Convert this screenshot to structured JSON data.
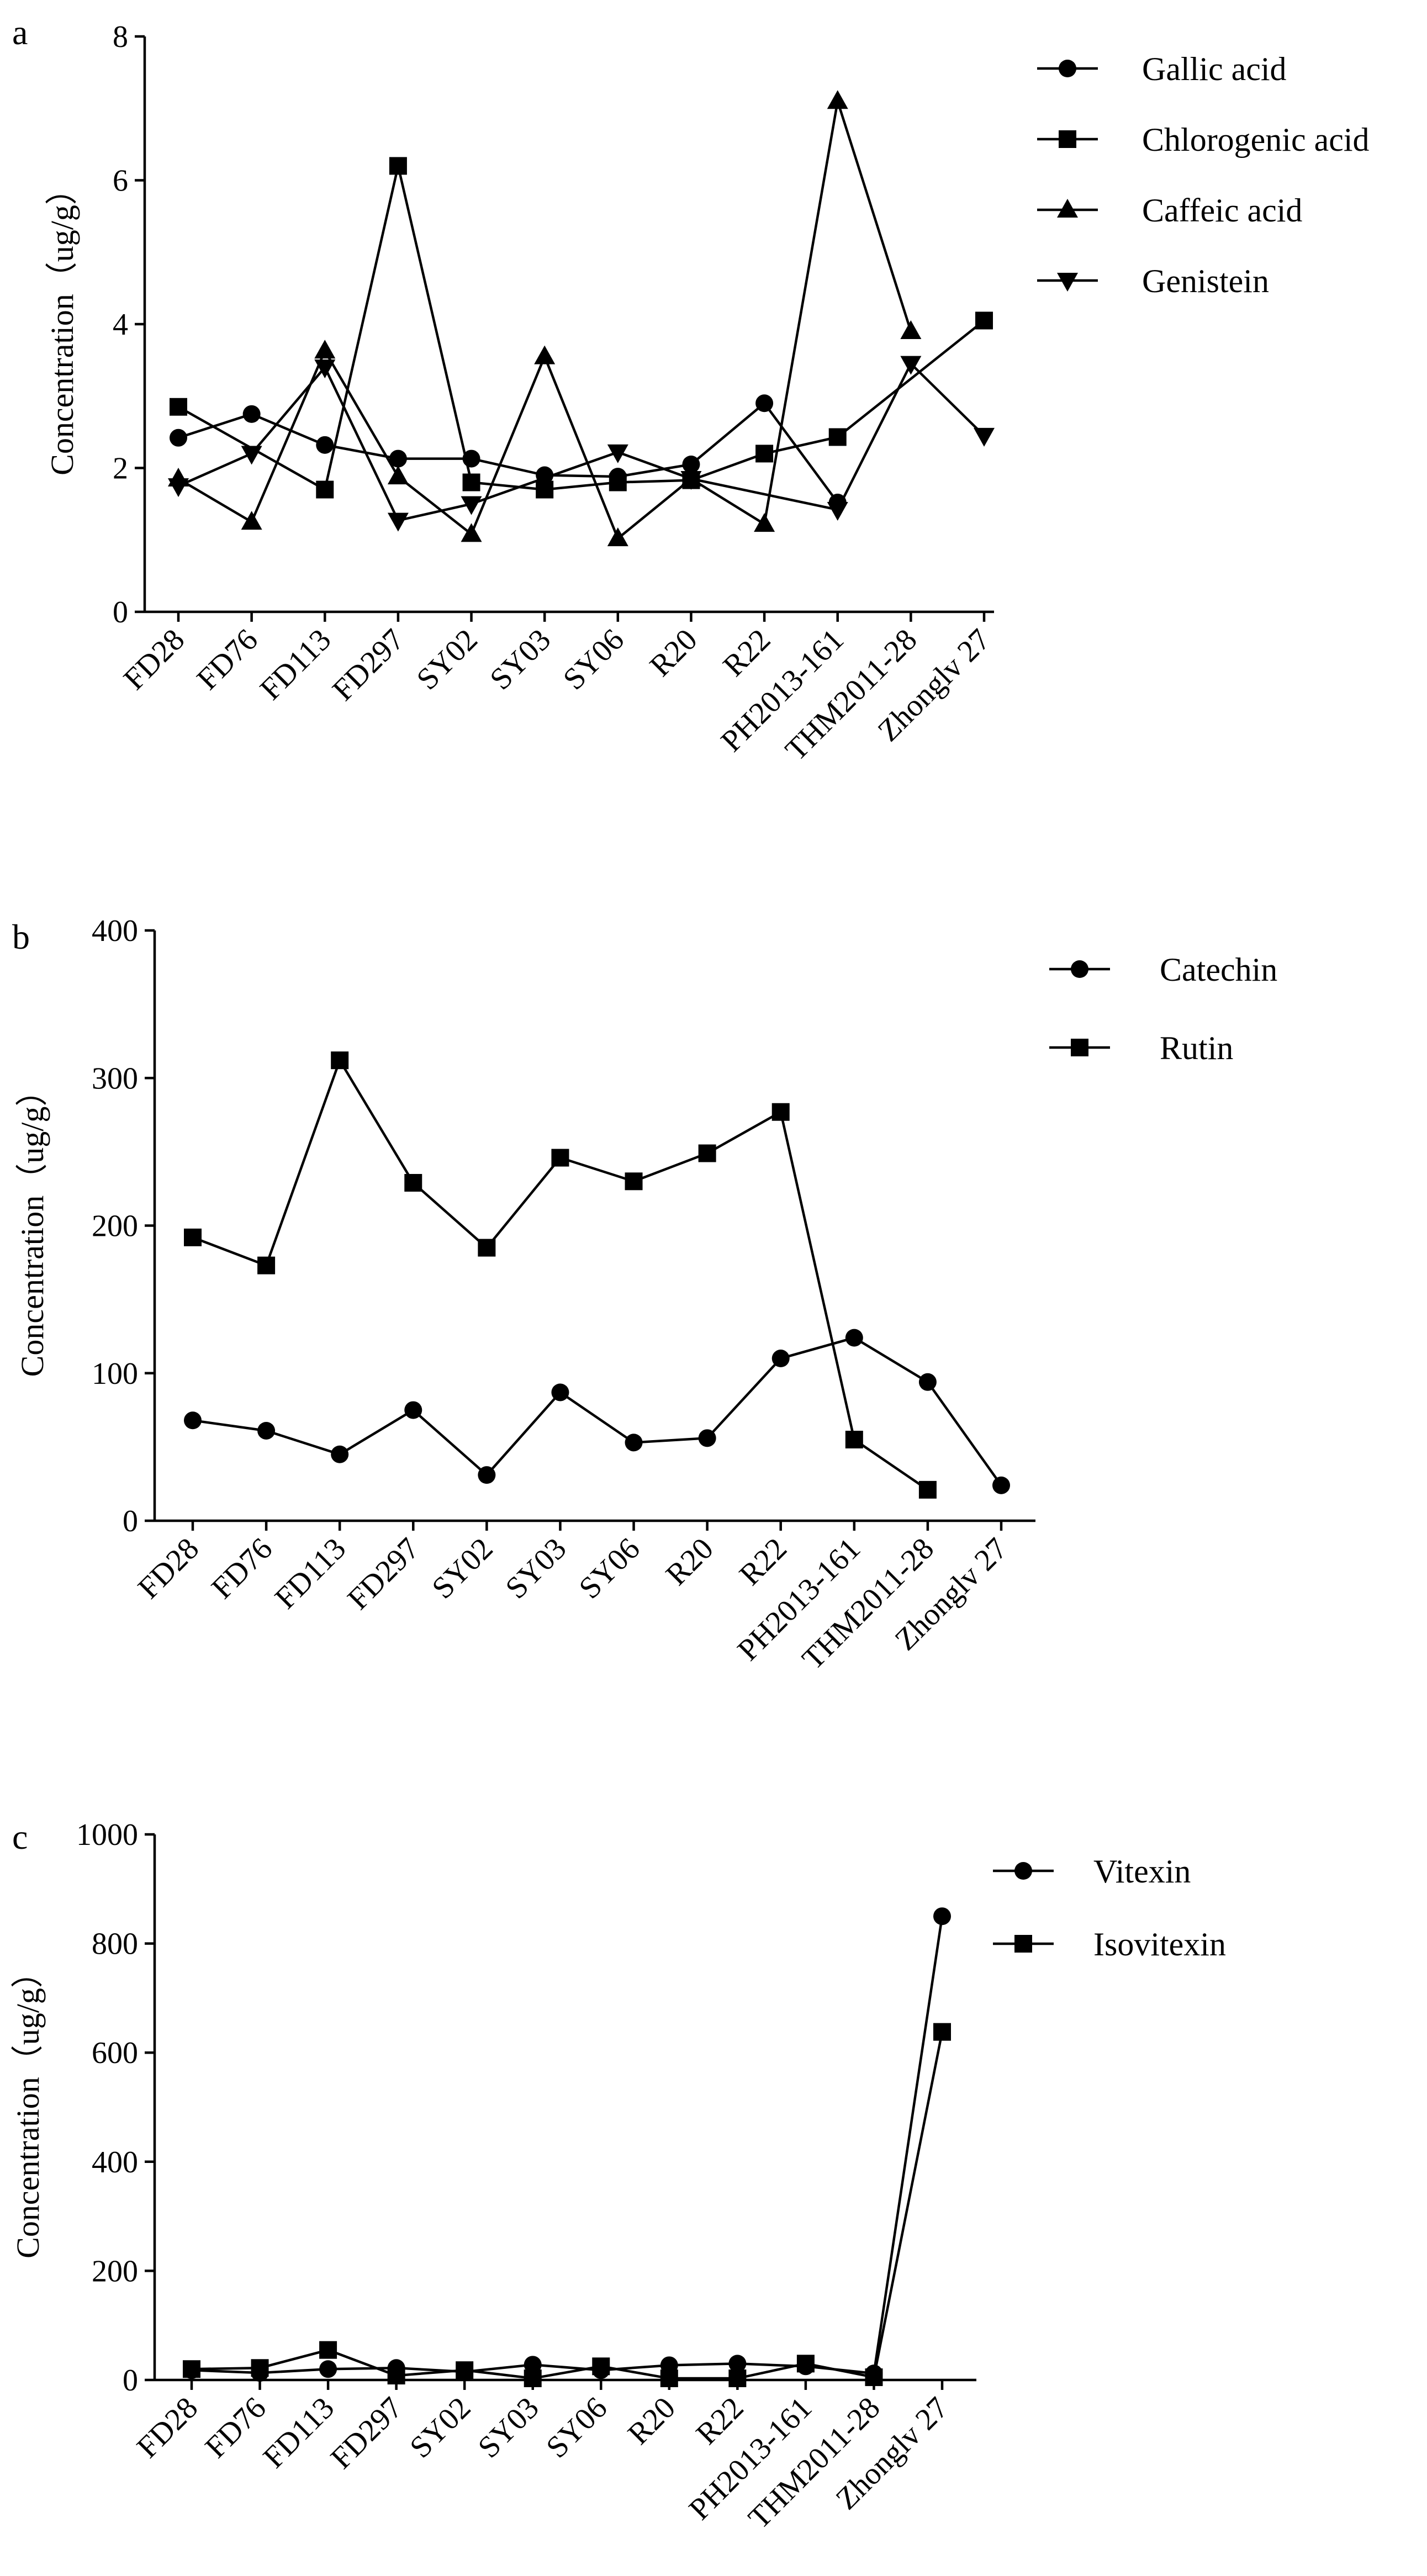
{
  "figure": {
    "panels": [
      "a",
      "b",
      "c"
    ]
  },
  "chart_data": [
    {
      "type": "line",
      "panel": "a",
      "title": "",
      "xlabel": "",
      "ylabel": "Concentration（ug/g）",
      "ylim": [
        0,
        8
      ],
      "yticks": [
        0,
        2,
        4,
        6,
        8
      ],
      "legend_position": "top-right",
      "categories": [
        "FD28",
        "FD76",
        "FD113",
        "FD297",
        "SY02",
        "SY03",
        "SY06",
        "R20",
        "R22",
        "PH2013-161",
        "THM2011-28",
        "Zhonglv 27"
      ],
      "series": [
        {
          "name": "Gallic acid",
          "marker": "circle",
          "values": [
            2.42,
            2.75,
            2.32,
            2.13,
            2.13,
            1.9,
            1.88,
            2.05,
            2.9,
            1.52,
            null,
            null
          ]
        },
        {
          "name": "Chlorogenic acid",
          "marker": "square",
          "values": [
            2.85,
            null,
            1.7,
            6.2,
            1.8,
            1.7,
            1.8,
            1.83,
            2.2,
            2.43,
            null,
            4.05
          ]
        },
        {
          "name": "Caffeic acid",
          "marker": "triangle-up",
          "values": [
            1.85,
            1.25,
            3.63,
            1.88,
            1.08,
            3.55,
            1.02,
            1.85,
            1.22,
            7.1,
            3.9,
            null
          ]
        },
        {
          "name": "Genistein",
          "marker": "triangle-down",
          "values": [
            1.75,
            2.2,
            3.4,
            1.27,
            1.5,
            null,
            2.22,
            1.85,
            null,
            1.42,
            3.45,
            2.45
          ]
        }
      ]
    },
    {
      "type": "line",
      "panel": "b",
      "title": "",
      "xlabel": "",
      "ylabel": "Concentration（ug/g）",
      "ylim": [
        0,
        400
      ],
      "yticks": [
        0,
        100,
        200,
        300,
        400
      ],
      "legend_position": "top-right",
      "categories": [
        "FD28",
        "FD76",
        "FD113",
        "FD297",
        "SY02",
        "SY03",
        "SY06",
        "R20",
        "R22",
        "PH2013-161",
        "THM2011-28",
        "Zhonglv 27"
      ],
      "series": [
        {
          "name": "Catechin",
          "marker": "circle",
          "values": [
            68,
            61,
            45,
            75,
            31,
            87,
            53,
            56,
            110,
            124,
            94,
            24
          ]
        },
        {
          "name": "Rutin",
          "marker": "square",
          "values": [
            192,
            173,
            312,
            229,
            185,
            246,
            230,
            249,
            277,
            55,
            21,
            null
          ]
        }
      ]
    },
    {
      "type": "line",
      "panel": "c",
      "title": "",
      "xlabel": "",
      "ylabel": "Concentration（ug/g）",
      "ylim": [
        0,
        1000
      ],
      "yticks": [
        0,
        200,
        400,
        600,
        800,
        1000
      ],
      "legend_position": "top-right",
      "categories": [
        "FD28",
        "FD76",
        "FD113",
        "FD297",
        "SY02",
        "SY03",
        "SY06",
        "R20",
        "R22",
        "PH2013-161",
        "THM2011-28",
        "Zhonglv 27"
      ],
      "series": [
        {
          "name": "Vitexin",
          "marker": "circle",
          "values": [
            18,
            13,
            20,
            22,
            15,
            28,
            18,
            27,
            30,
            25,
            12,
            850
          ]
        },
        {
          "name": "Isovitexin",
          "marker": "square",
          "values": [
            20,
            22,
            55,
            8,
            18,
            3,
            25,
            3,
            3,
            30,
            5,
            638
          ]
        }
      ]
    }
  ]
}
